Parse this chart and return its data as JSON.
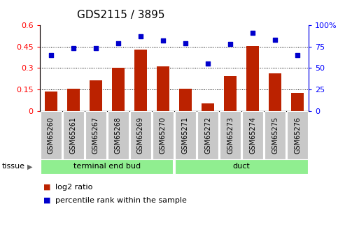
{
  "title": "GDS2115 / 3895",
  "samples": [
    "GSM65260",
    "GSM65261",
    "GSM65267",
    "GSM65268",
    "GSM65269",
    "GSM65270",
    "GSM65271",
    "GSM65272",
    "GSM65273",
    "GSM65274",
    "GSM65275",
    "GSM65276"
  ],
  "log2_ratio": [
    0.135,
    0.155,
    0.215,
    0.3,
    0.43,
    0.31,
    0.155,
    0.05,
    0.245,
    0.455,
    0.265,
    0.125
  ],
  "percentile_rank": [
    65,
    73,
    73,
    79,
    87,
    82,
    79,
    55,
    78,
    91,
    83,
    65
  ],
  "teb_count": 6,
  "tissue_label_teb": "terminal end bud",
  "tissue_label_duct": "duct",
  "tissue_color": "#90EE90",
  "sample_bg_color": "#C8C8C8",
  "bar_color": "#BB2200",
  "dot_color": "#0000CC",
  "left_ylim": [
    0,
    0.6
  ],
  "right_ylim": [
    0,
    100
  ],
  "left_yticks": [
    0,
    0.15,
    0.3,
    0.45,
    0.6
  ],
  "right_yticks": [
    0,
    25,
    50,
    75,
    100
  ],
  "right_yticklabels": [
    "0",
    "25",
    "50",
    "75",
    "100%"
  ],
  "grid_lines": [
    0.15,
    0.3,
    0.45
  ],
  "bg_color": "#ffffff",
  "tissue_label": "tissue",
  "legend_bar_label": "log2 ratio",
  "legend_dot_label": "percentile rank within the sample",
  "title_fontsize": 11,
  "axis_fontsize": 8,
  "sample_fontsize": 7
}
